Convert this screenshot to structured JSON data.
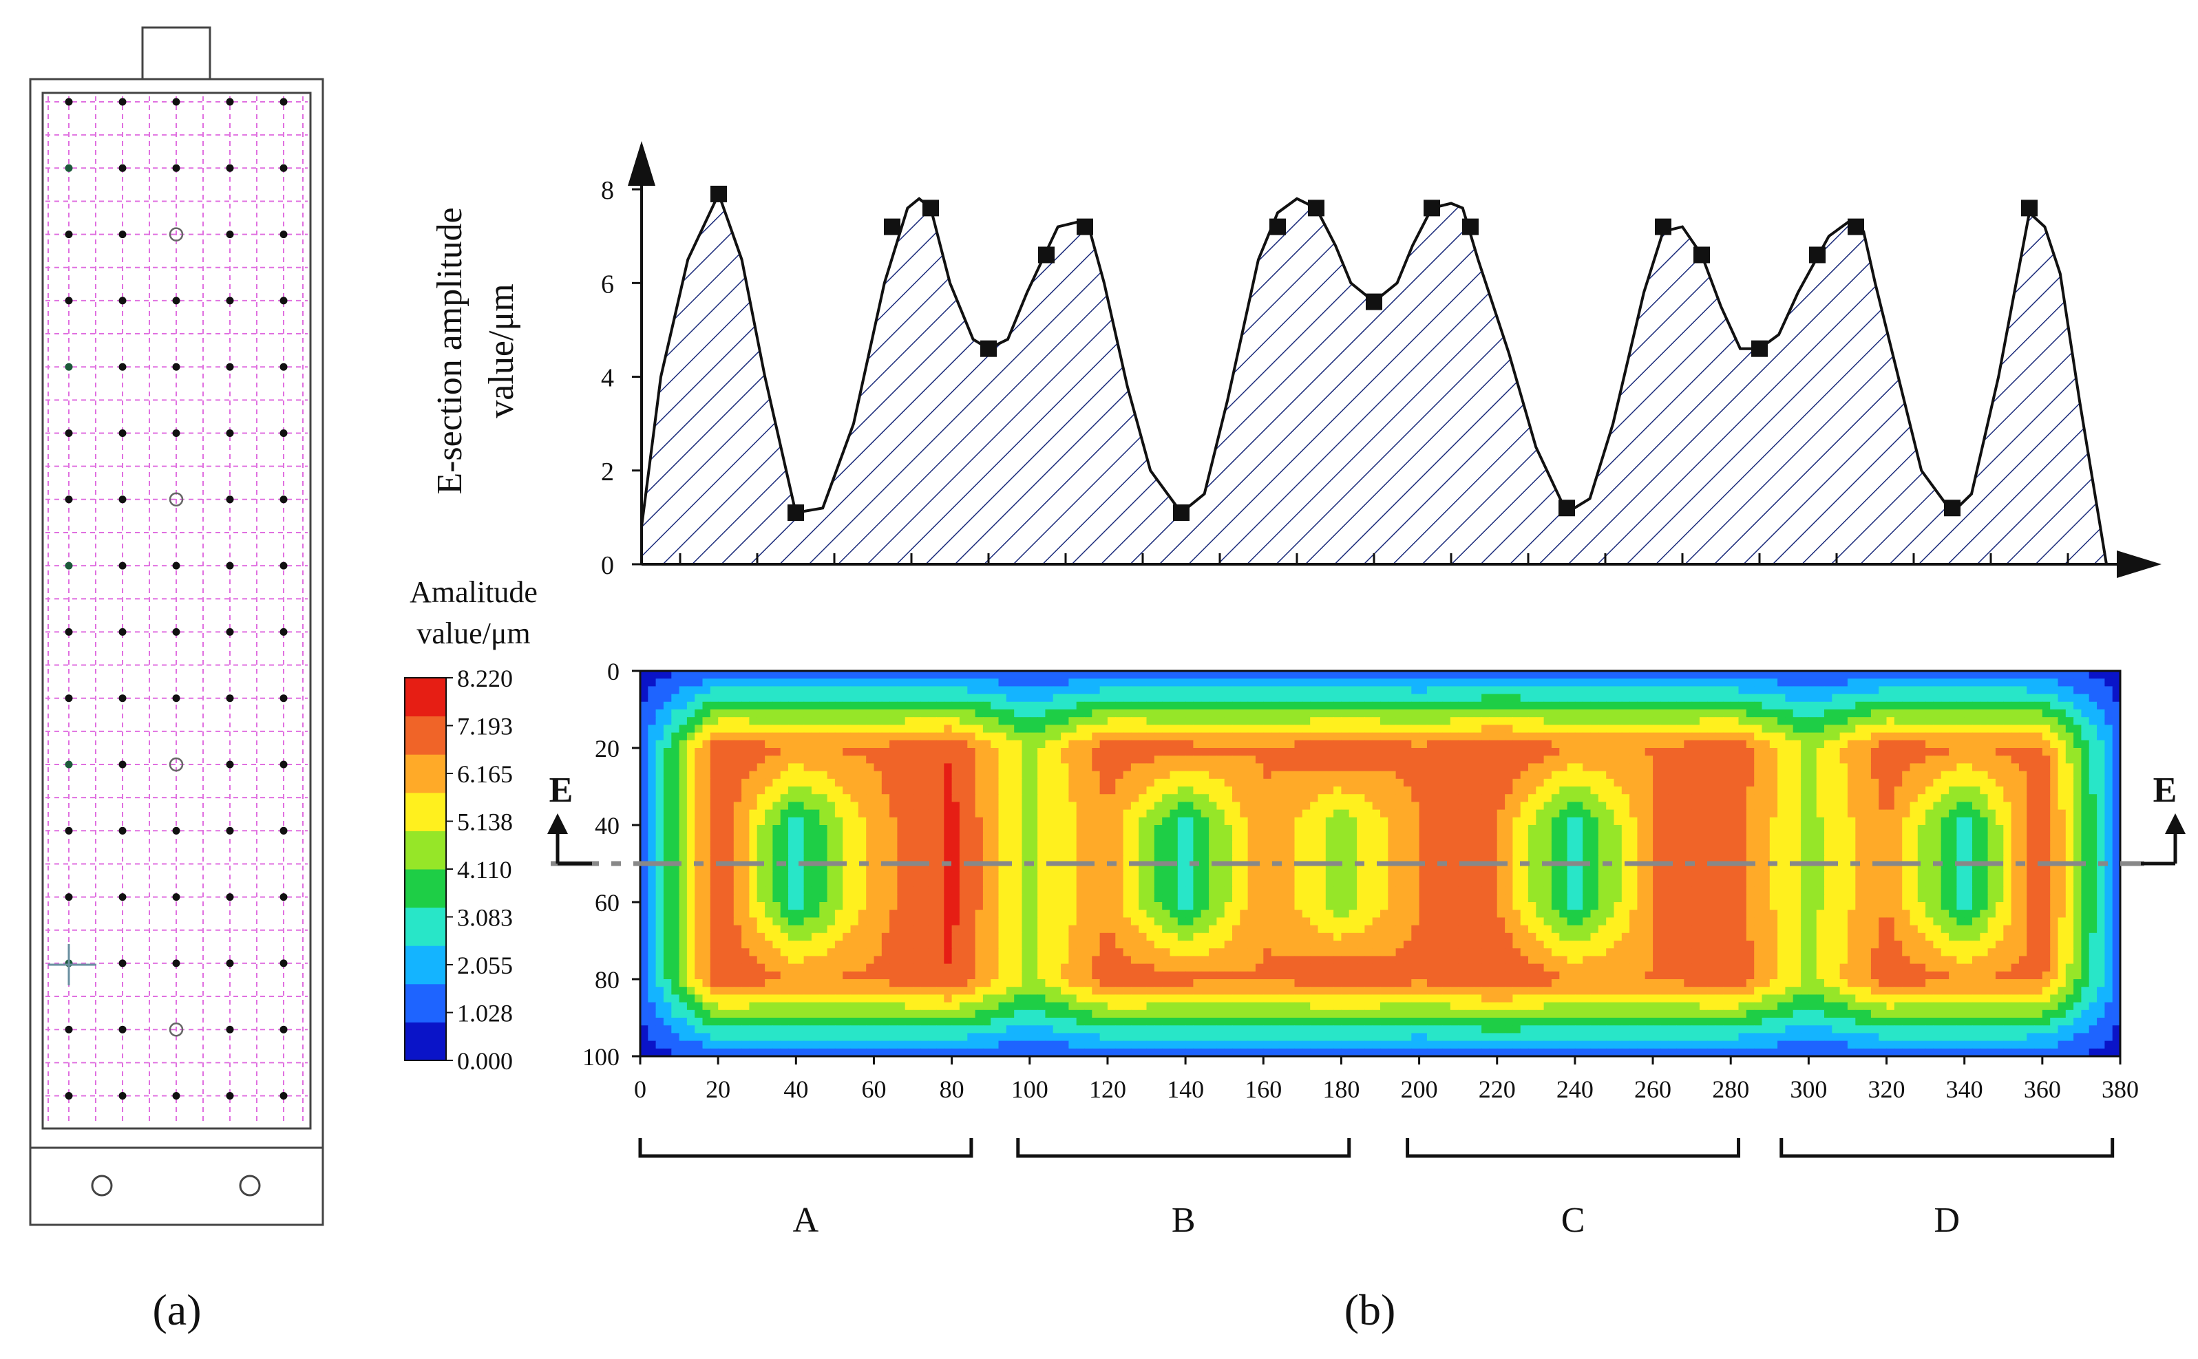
{
  "panel_labels": {
    "a": "(a)",
    "b": "(b)"
  },
  "section_labels": [
    "A",
    "B",
    "C",
    "D"
  ],
  "section_marker": {
    "left": "E",
    "right": "E"
  },
  "colorbar": {
    "title_line1": "Amalitude",
    "title_line2": "value/μm",
    "ticks": [
      "8.220",
      "7.193",
      "6.165",
      "5.138",
      "4.110",
      "3.083",
      "2.055",
      "1.028",
      "0.000"
    ],
    "colors": [
      "#0a14c8",
      "#1e64ff",
      "#14b4ff",
      "#28e6c8",
      "#1ece46",
      "#96e628",
      "#fff01e",
      "#ffaa28",
      "#f06428",
      "#e61e14"
    ]
  },
  "chart_data": [
    {
      "type": "line",
      "title": "",
      "ylabel_line1": "E-section amplitude",
      "ylabel_line2": "value/μm",
      "xlabel": "",
      "xlim": [
        0,
        380
      ],
      "ylim": [
        0,
        9
      ],
      "yticks": [
        "0",
        "2",
        "4",
        "6",
        "8"
      ],
      "fill": "hatched",
      "x": [
        0,
        5,
        12,
        20,
        26,
        32,
        40,
        47,
        55,
        63,
        69,
        72,
        75,
        80,
        86,
        90,
        95,
        100,
        108,
        113,
        116,
        120,
        126,
        132,
        140,
        146,
        152,
        160,
        165,
        170,
        175,
        180,
        184,
        190,
        196,
        200,
        205,
        210,
        213,
        217,
        225,
        232,
        240,
        246,
        252,
        260,
        265,
        270,
        275,
        280,
        285,
        290,
        295,
        300,
        308,
        313,
        317,
        320,
        326,
        332,
        340,
        345,
        352,
        360,
        364,
        368,
        373,
        380
      ],
      "y": [
        0.8,
        4.0,
        6.5,
        7.9,
        6.5,
        4.0,
        1.1,
        1.2,
        3.0,
        6.0,
        7.6,
        7.8,
        7.6,
        6.0,
        4.8,
        4.6,
        4.8,
        5.8,
        7.2,
        7.3,
        7.2,
        6.0,
        3.8,
        2.0,
        1.1,
        1.5,
        3.5,
        6.5,
        7.5,
        7.8,
        7.6,
        6.8,
        6.0,
        5.6,
        6.0,
        6.8,
        7.6,
        7.7,
        7.6,
        6.5,
        4.5,
        2.5,
        1.1,
        1.4,
        3.0,
        5.8,
        7.1,
        7.2,
        6.6,
        5.5,
        4.6,
        4.6,
        4.9,
        5.8,
        7.0,
        7.3,
        7.1,
        6.0,
        4.0,
        2.0,
        1.1,
        1.5,
        4.0,
        7.5,
        7.2,
        6.2,
        3.5,
        0.0
      ],
      "markers": [
        {
          "x": 20,
          "y": 7.9
        },
        {
          "x": 40,
          "y": 1.1
        },
        {
          "x": 65,
          "y": 7.2
        },
        {
          "x": 75,
          "y": 7.6
        },
        {
          "x": 90,
          "y": 4.6
        },
        {
          "x": 105,
          "y": 6.6
        },
        {
          "x": 115,
          "y": 7.2
        },
        {
          "x": 140,
          "y": 1.1
        },
        {
          "x": 165,
          "y": 7.2
        },
        {
          "x": 175,
          "y": 7.6
        },
        {
          "x": 190,
          "y": 5.6
        },
        {
          "x": 205,
          "y": 7.6
        },
        {
          "x": 215,
          "y": 7.2
        },
        {
          "x": 240,
          "y": 1.2
        },
        {
          "x": 265,
          "y": 7.2
        },
        {
          "x": 275,
          "y": 6.6
        },
        {
          "x": 290,
          "y": 4.6
        },
        {
          "x": 305,
          "y": 6.6
        },
        {
          "x": 315,
          "y": 7.2
        },
        {
          "x": 340,
          "y": 1.2
        },
        {
          "x": 360,
          "y": 7.6
        }
      ]
    },
    {
      "type": "heatmap",
      "title": "",
      "xlabel": "",
      "ylabel": "",
      "xlim": [
        0,
        380
      ],
      "ylim": [
        0,
        100
      ],
      "xticks": [
        "0",
        "20",
        "40",
        "60",
        "80",
        "100",
        "120",
        "140",
        "160",
        "180",
        "200",
        "220",
        "240",
        "260",
        "280",
        "300",
        "320",
        "340",
        "360",
        "380"
      ],
      "yticks": [
        "0",
        "20",
        "40",
        "60",
        "80",
        "100"
      ],
      "value_range": [
        0.0,
        8.22
      ],
      "section_line_y": 50,
      "grid_x": [
        0,
        20,
        40,
        60,
        80,
        100,
        120,
        140,
        160,
        180,
        200,
        220,
        240,
        260,
        280,
        300,
        320,
        340,
        360,
        380
      ],
      "grid_y": [
        0,
        20,
        40,
        60,
        80,
        100
      ],
      "values": [
        [
          0.4,
          1.0,
          1.2,
          1.2,
          1.0,
          0.8,
          1.0,
          1.2,
          1.2,
          1.0,
          1.0,
          1.2,
          1.2,
          1.2,
          1.0,
          0.8,
          1.0,
          1.2,
          1.0,
          0.4
        ],
        [
          1.2,
          7.3,
          6.6,
          6.7,
          7.4,
          4.8,
          7.1,
          6.9,
          6.6,
          7.3,
          6.8,
          7.4,
          6.6,
          6.6,
          7.3,
          4.8,
          7.1,
          6.6,
          6.8,
          1.2
        ],
        [
          1.2,
          7.5,
          2.8,
          6.2,
          7.6,
          4.7,
          6.4,
          2.8,
          6.6,
          4.4,
          6.6,
          6.6,
          2.8,
          6.6,
          7.1,
          4.6,
          6.6,
          2.8,
          7.4,
          1.2
        ],
        [
          1.2,
          7.5,
          2.8,
          6.2,
          7.6,
          4.7,
          6.4,
          2.8,
          6.6,
          4.4,
          6.6,
          6.6,
          2.8,
          6.6,
          7.1,
          4.6,
          6.6,
          2.8,
          7.4,
          1.2
        ],
        [
          1.2,
          7.3,
          6.6,
          6.7,
          7.4,
          4.8,
          7.1,
          6.9,
          6.6,
          7.3,
          6.8,
          7.4,
          6.6,
          6.6,
          7.3,
          4.8,
          7.1,
          6.6,
          6.8,
          1.2
        ],
        [
          0.4,
          1.0,
          1.2,
          1.2,
          1.0,
          0.8,
          1.0,
          1.2,
          1.2,
          1.0,
          1.0,
          1.2,
          1.2,
          1.2,
          1.0,
          0.8,
          1.0,
          1.2,
          1.0,
          0.4
        ]
      ]
    }
  ]
}
